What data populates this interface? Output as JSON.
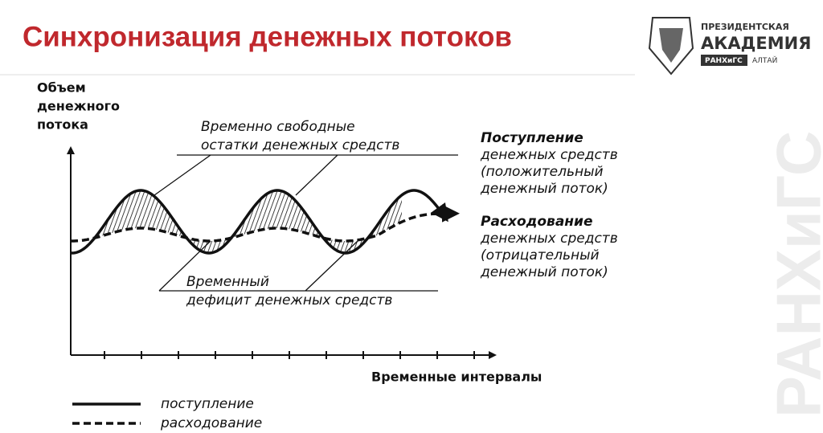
{
  "header": {
    "title": "Синхронизация денежных потоков"
  },
  "logo": {
    "line1": "ПРЕЗИДЕНТСКАЯ",
    "line2": "АКАДЕМИЯ",
    "line3": "РАНХиГС",
    "line4": "АЛТАЙ"
  },
  "watermark": "РАНХиГС",
  "diagram": {
    "y_axis_label": [
      "Объем",
      "денежного",
      "потока"
    ],
    "x_axis_label": "Временные интервалы",
    "surplus_label": [
      "Временно свободные",
      "остатки денежных средств"
    ],
    "deficit_label": [
      "Временный",
      "дефицит денежных средств"
    ],
    "inflow_label": {
      "title": "Поступление",
      "lines": [
        "денежных средств",
        "(положительный",
        "денежный поток)"
      ]
    },
    "outflow_label": {
      "title": "Расходование",
      "lines": [
        "денежных средств",
        "(отрицательный",
        "денежный поток)"
      ]
    }
  },
  "legend": {
    "solid": "поступление",
    "dashed": "расходование"
  }
}
